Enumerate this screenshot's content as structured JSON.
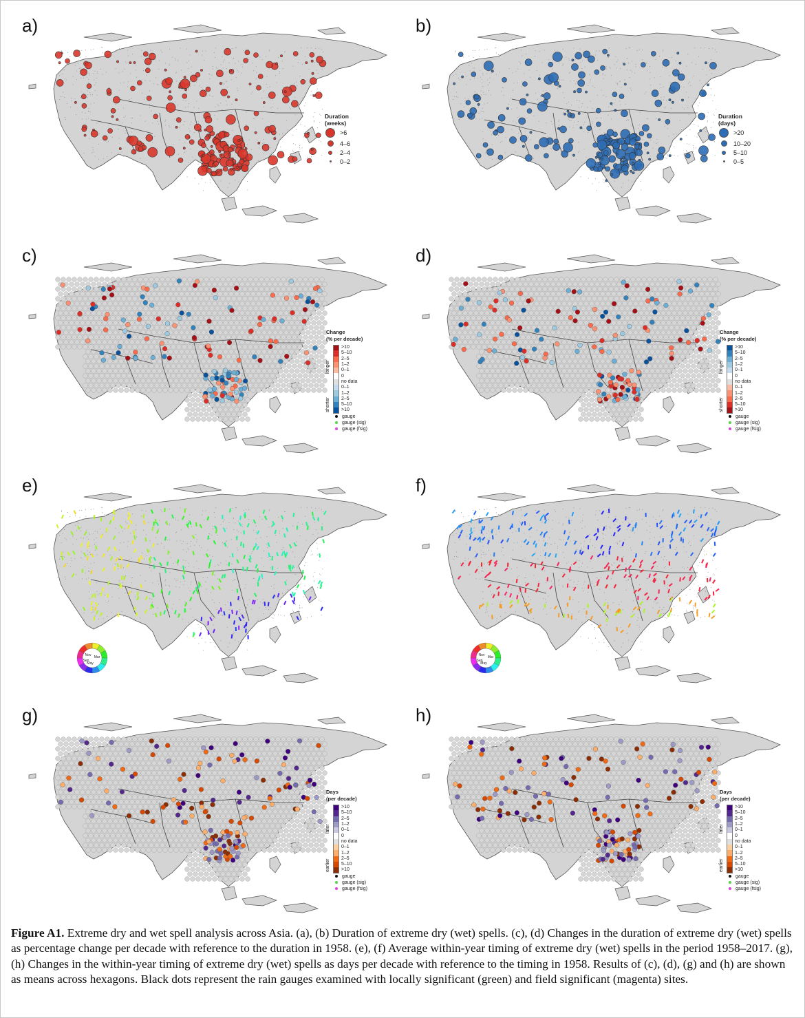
{
  "panels": [
    {
      "id": "a",
      "label": "a)",
      "legend_type": "size",
      "legend_title": "Duration\n(weeks)",
      "legend_items": [
        ">6",
        "4–6",
        "2–4",
        "0–2"
      ],
      "color": "#d9362b"
    },
    {
      "id": "b",
      "label": "b)",
      "legend_type": "size",
      "legend_title": "Duration\n(days)",
      "legend_items": [
        ">20",
        "10–20",
        "5–10",
        "0–5"
      ],
      "color": "#2d6db5"
    },
    {
      "id": "c",
      "label": "c)",
      "legend_type": "change",
      "legend_title": "Change\n(% per decade)",
      "upper_side": "longer",
      "lower_side": "shorter",
      "scale": "red-top"
    },
    {
      "id": "d",
      "label": "d)",
      "legend_type": "change",
      "legend_title": "Change\n(% per decade)",
      "upper_side": "longer",
      "lower_side": "shorter",
      "scale": "blue-top"
    },
    {
      "id": "e",
      "label": "e)",
      "legend_type": "wheel",
      "wheel_labels": [
        "Nov",
        "Mar",
        "May",
        "Sep"
      ]
    },
    {
      "id": "f",
      "label": "f)",
      "legend_type": "wheel",
      "wheel_labels": [
        "Nov",
        "Mar",
        "May",
        "Sep"
      ]
    },
    {
      "id": "g",
      "label": "g)",
      "legend_type": "change",
      "legend_title": "Days\n(per decade)",
      "upper_side": "later",
      "lower_side": "earlier",
      "scale": "purple-top"
    },
    {
      "id": "h",
      "label": "h)",
      "legend_type": "change",
      "legend_title": "Days\n(per decade)",
      "upper_side": "later",
      "lower_side": "earlier",
      "scale": "purple-top"
    }
  ],
  "change_labels": [
    ">10",
    "5–10",
    "2–5",
    "1–2",
    "0–1",
    "0",
    "no data",
    "0–1",
    "1–2",
    "2–5",
    "5–10",
    ">10"
  ],
  "gauge_labels": [
    "gauge",
    "gauge (sig)",
    "gauge (fsig)"
  ],
  "gauge_colors": [
    "#111111",
    "#5ad24a",
    "#e040e0"
  ],
  "scales": {
    "red-top": [
      "#a50f15",
      "#de2d26",
      "#fb6a4a",
      "#fc9272",
      "#fcbba1",
      "#ffffff",
      "#e0e0e0",
      "#c6dbef",
      "#9ecae1",
      "#6baed6",
      "#3182bd",
      "#08519c"
    ],
    "blue-top": [
      "#08519c",
      "#3182bd",
      "#6baed6",
      "#9ecae1",
      "#c6dbef",
      "#ffffff",
      "#e0e0e0",
      "#fcbba1",
      "#fc9272",
      "#fb6a4a",
      "#de2d26",
      "#a50f15"
    ],
    "purple-top": [
      "#3f007d",
      "#54278f",
      "#756bb1",
      "#9e9ac8",
      "#cbc9e2",
      "#ffffff",
      "#e0e0e0",
      "#fdd0a2",
      "#fdae6b",
      "#f16913",
      "#d94801",
      "#8c2d04"
    ]
  },
  "caption": {
    "figure_label": "Figure A1.",
    "text": " Extreme dry and wet spell analysis across Asia. (a), (b) Duration of extreme dry (wet) spells. (c), (d) Changes in the duration of extreme dry (wet) spells as percentage change per decade with reference to the duration in 1958. (e), (f) Average within-year timing of extreme dry (wet) spells in the period 1958–2017. (g), (h) Changes in the within-year timing of extreme dry (wet) spells as days per decade with reference to the timing in 1958. Results of (c), (d), (g) and (h) are shown as means across hexagons. Black dots represent the rain gauges examined with locally significant (green) and field significant (magenta) sites."
  }
}
